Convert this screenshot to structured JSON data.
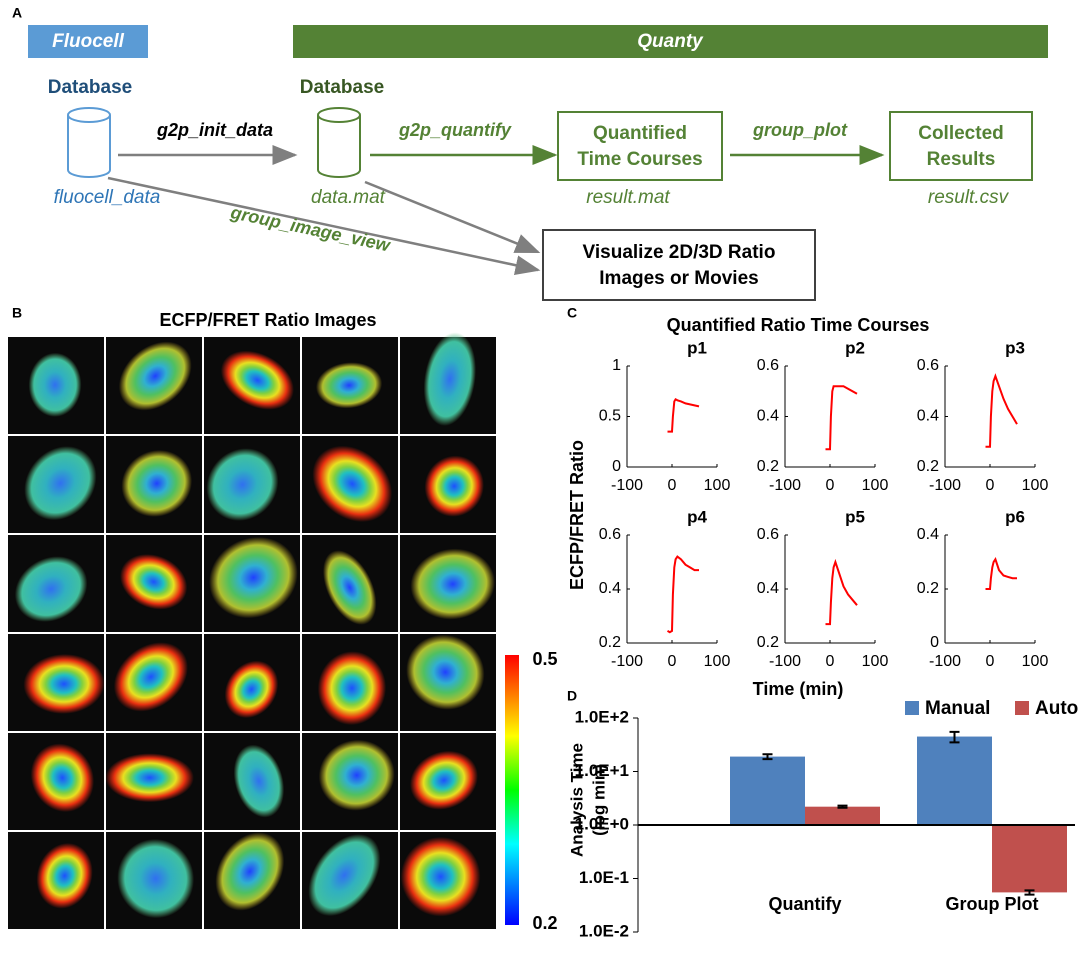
{
  "labels": [
    "A",
    "B",
    "C",
    "D"
  ],
  "diagram": {
    "fluocell": "Fluocell",
    "quanty": "Quanty",
    "db1": {
      "title": "Database",
      "file": "fluocell_data"
    },
    "db2": {
      "title": "Database",
      "file": "data.mat"
    },
    "init": "g2p_init_data",
    "quantify": "g2p_quantify",
    "group_plot": "group_plot",
    "image_view": "group_image_view",
    "quantified": {
      "lines": [
        "Quantified",
        "Time Courses"
      ],
      "file": "result.mat"
    },
    "collected": {
      "lines": [
        "Collected",
        "Results"
      ],
      "file": "result.csv"
    },
    "visualize": {
      "lines": [
        "Visualize 2D/3D Ratio",
        "Images or Movies"
      ]
    }
  },
  "images": {
    "title": "ECFP/FRET Ratio Images",
    "colorbar": {
      "max": 0.5,
      "min": 0.2
    }
  },
  "panel_c": {
    "title": "Quantified Ratio Time Courses",
    "ylabel": "ECFP/FRET Ratio",
    "xlabel": "Time (min)"
  },
  "chart_data": [
    {
      "type": "line",
      "title": "p1",
      "color": "#ff0000",
      "x": [
        -10,
        -5,
        0,
        2,
        5,
        8,
        12,
        20,
        30,
        40,
        50,
        60
      ],
      "values": [
        0.35,
        0.35,
        0.35,
        0.5,
        0.65,
        0.67,
        0.66,
        0.65,
        0.63,
        0.62,
        0.61,
        0.6
      ],
      "xlim": [
        -100,
        100
      ],
      "xticks": [
        -100,
        0,
        100
      ],
      "ylim": [
        0,
        1
      ],
      "yticks": [
        0,
        0.5,
        1
      ]
    },
    {
      "type": "line",
      "title": "p2",
      "color": "#ff0000",
      "x": [
        -10,
        -5,
        0,
        2,
        5,
        8,
        12,
        20,
        30,
        40,
        50,
        60
      ],
      "values": [
        0.27,
        0.27,
        0.27,
        0.4,
        0.5,
        0.52,
        0.52,
        0.52,
        0.52,
        0.51,
        0.5,
        0.49
      ],
      "xlim": [
        -100,
        100
      ],
      "xticks": [
        -100,
        0,
        100
      ],
      "ylim": [
        0.2,
        0.6
      ],
      "yticks": [
        0.2,
        0.4,
        0.6
      ]
    },
    {
      "type": "line",
      "title": "p3",
      "color": "#ff0000",
      "x": [
        -10,
        -5,
        0,
        2,
        5,
        8,
        12,
        20,
        30,
        40,
        50,
        60
      ],
      "values": [
        0.28,
        0.28,
        0.28,
        0.4,
        0.5,
        0.54,
        0.56,
        0.52,
        0.47,
        0.43,
        0.4,
        0.37
      ],
      "xlim": [
        -100,
        100
      ],
      "xticks": [
        -100,
        0,
        100
      ],
      "ylim": [
        0.2,
        0.6
      ],
      "yticks": [
        0.2,
        0.4,
        0.6
      ]
    },
    {
      "type": "line",
      "title": "p4",
      "color": "#ff0000",
      "x": [
        -10,
        -5,
        0,
        2,
        5,
        8,
        12,
        20,
        30,
        40,
        50,
        60
      ],
      "values": [
        0.245,
        0.24,
        0.245,
        0.38,
        0.48,
        0.51,
        0.52,
        0.51,
        0.49,
        0.48,
        0.47,
        0.47
      ],
      "xlim": [
        -100,
        100
      ],
      "xticks": [
        -100,
        0,
        100
      ],
      "ylim": [
        0.2,
        0.6
      ],
      "yticks": [
        0.2,
        0.4,
        0.6
      ]
    },
    {
      "type": "line",
      "title": "p5",
      "color": "#ff0000",
      "x": [
        -10,
        -5,
        0,
        2,
        5,
        8,
        12,
        20,
        30,
        40,
        50,
        60
      ],
      "values": [
        0.27,
        0.27,
        0.27,
        0.35,
        0.44,
        0.48,
        0.5,
        0.46,
        0.41,
        0.38,
        0.36,
        0.34
      ],
      "xlim": [
        -100,
        100
      ],
      "xticks": [
        -100,
        0,
        100
      ],
      "ylim": [
        0.2,
        0.6
      ],
      "yticks": [
        0.2,
        0.4,
        0.6
      ]
    },
    {
      "type": "line",
      "title": "p6",
      "color": "#ff0000",
      "x": [
        -10,
        -5,
        0,
        2,
        5,
        8,
        12,
        20,
        30,
        40,
        50,
        60
      ],
      "values": [
        0.2,
        0.2,
        0.2,
        0.24,
        0.28,
        0.3,
        0.31,
        0.27,
        0.25,
        0.245,
        0.24,
        0.24
      ],
      "xlim": [
        -100,
        100
      ],
      "xticks": [
        -100,
        0,
        100
      ],
      "ylim": [
        0,
        0.4
      ],
      "yticks": [
        0,
        0.2,
        0.4
      ]
    },
    {
      "type": "bar",
      "categories": [
        "Quantify",
        "Group Plot"
      ],
      "log": true,
      "baseline": 1,
      "legend": "top-right",
      "ylabel": [
        "Analysis Time",
        "(log min)"
      ],
      "ylim": [
        0.01,
        100
      ],
      "yticks": [
        {
          "value": 100,
          "label": "1.0E+2"
        },
        {
          "value": 10,
          "label": "1.0E+1"
        },
        {
          "value": 1,
          "label": "1.0E+0"
        },
        {
          "value": 0.1,
          "label": "1.0E-1"
        },
        {
          "value": 0.01,
          "label": "1.0E-2"
        }
      ],
      "series": [
        {
          "name": "Manual",
          "color": "#4f81bd",
          "values": [
            19,
            45
          ],
          "errors": [
            2,
            10
          ]
        },
        {
          "name": "Auto",
          "color": "#c0504d",
          "values": [
            2.2,
            0.055
          ],
          "errors": [
            0.1,
            0.005
          ]
        }
      ]
    }
  ]
}
